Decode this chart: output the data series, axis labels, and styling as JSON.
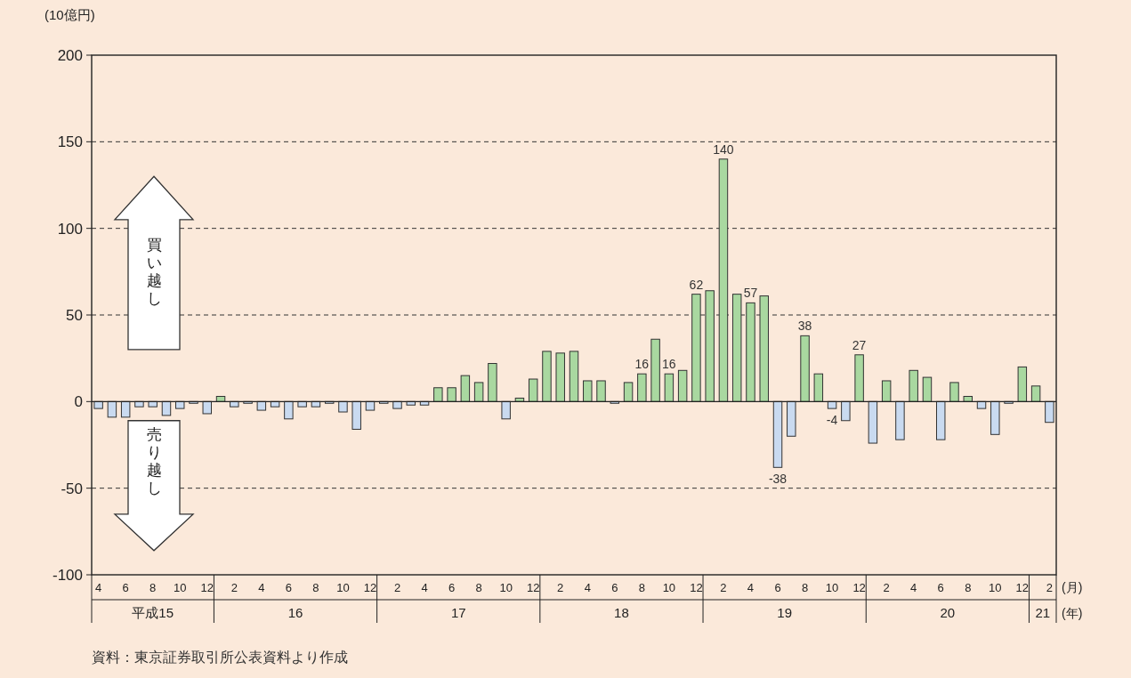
{
  "chart_data": {
    "type": "bar",
    "ylabel": "(10億円)",
    "categories": [
      "4",
      null,
      "6",
      null,
      "8",
      null,
      "10",
      null,
      "12",
      null,
      "2",
      null,
      "4",
      null,
      "6",
      null,
      "8",
      null,
      "10",
      null,
      "12",
      null,
      "2",
      null,
      "4",
      null,
      "6",
      null,
      "8",
      null,
      "10",
      null,
      "12",
      null,
      "2",
      null,
      "4",
      null,
      "6",
      null,
      "8",
      null,
      "10",
      null,
      "12",
      null,
      "2",
      null,
      "4",
      null,
      "6",
      null,
      "8",
      null,
      "10",
      null,
      "12",
      null,
      "2",
      null,
      "4",
      null,
      "6",
      null,
      "8",
      null,
      "10",
      null,
      "12",
      null,
      "2"
    ],
    "values": [
      -4,
      -9,
      -9,
      -3,
      -3,
      -8,
      -4,
      -1,
      -7,
      3,
      -3,
      -1,
      -5,
      -3,
      -10,
      -3,
      -3,
      -1,
      -6,
      -16,
      -5,
      -1,
      -4,
      -2,
      -2,
      8,
      8,
      15,
      11,
      22,
      -10,
      2,
      13,
      29,
      28,
      29,
      12,
      12,
      -1,
      11,
      16,
      36,
      16,
      18,
      62,
      64,
      140,
      62,
      57,
      61,
      -38,
      -20,
      38,
      16,
      -4,
      -11,
      27,
      -24,
      12,
      -22,
      18,
      14,
      -22,
      11,
      3,
      -4,
      -19,
      -1,
      20,
      9,
      -12
    ],
    "colors": [
      "#c9daf0",
      "#c9daf0",
      "#c9daf0",
      "#c9daf0",
      "#c9daf0",
      "#c9daf0",
      "#c9daf0",
      "#c9daf0",
      "#c9daf0",
      "#a9d8a0",
      "#c9daf0",
      "#c9daf0",
      "#c9daf0",
      "#c9daf0",
      "#c9daf0",
      "#c9daf0",
      "#c9daf0",
      "#c9daf0",
      "#c9daf0",
      "#c9daf0",
      "#c9daf0",
      "#c9daf0",
      "#c9daf0",
      "#c9daf0",
      "#c9daf0",
      "#a9d8a0",
      "#a9d8a0",
      "#a9d8a0",
      "#a9d8a0",
      "#a9d8a0",
      "#c9daf0",
      "#a9d8a0",
      "#a9d8a0",
      "#a9d8a0",
      "#a9d8a0",
      "#a9d8a0",
      "#a9d8a0",
      "#a9d8a0",
      "#c9daf0",
      "#a9d8a0",
      "#a9d8a0",
      "#a9d8a0",
      "#a9d8a0",
      "#a9d8a0",
      "#a9d8a0",
      "#a9d8a0",
      "#a9d8a0",
      "#a9d8a0",
      "#a9d8a0",
      "#a9d8a0",
      "#c9daf0",
      "#c9daf0",
      "#a9d8a0",
      "#a9d8a0",
      "#c9daf0",
      "#c9daf0",
      "#a9d8a0",
      "#c9daf0",
      "#a9d8a0",
      "#c9daf0",
      "#a9d8a0",
      "#a9d8a0",
      "#c9daf0",
      "#a9d8a0",
      "#a9d8a0",
      "#c9daf0",
      "#c9daf0",
      "#c9daf0",
      "#a9d8a0",
      "#a9d8a0",
      "#c9daf0"
    ],
    "value_labels": [
      null,
      null,
      null,
      null,
      null,
      null,
      null,
      null,
      null,
      null,
      null,
      null,
      null,
      null,
      null,
      null,
      null,
      null,
      null,
      null,
      null,
      null,
      null,
      null,
      null,
      null,
      null,
      null,
      null,
      null,
      null,
      null,
      null,
      null,
      null,
      null,
      null,
      null,
      null,
      null,
      "16",
      null,
      "16",
      null,
      "62",
      null,
      "140",
      null,
      "57",
      null,
      "-38",
      null,
      "38",
      null,
      "-4",
      null,
      "27",
      null,
      null,
      null,
      null,
      null,
      null,
      null,
      null,
      null,
      null,
      null,
      null,
      null,
      null
    ],
    "ylim": [
      -100,
      200
    ],
    "yticks": [
      -100,
      -50,
      0,
      50,
      100,
      150,
      200
    ],
    "grid": "y",
    "annotations": [
      "(月)",
      "(年)",
      "買い越し",
      "売り越し",
      "資料：東京証券取引所公表資料より作成",
      "平成15",
      "16",
      "17",
      "18",
      "19",
      "20",
      "21"
    ]
  }
}
